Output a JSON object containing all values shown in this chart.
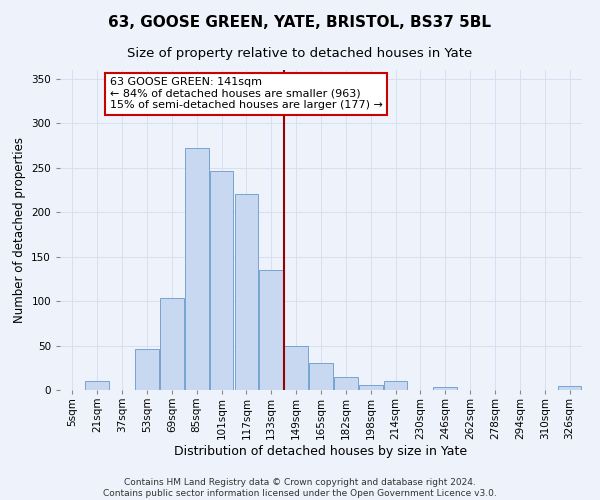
{
  "title": "63, GOOSE GREEN, YATE, BRISTOL, BS37 5BL",
  "subtitle": "Size of property relative to detached houses in Yate",
  "xlabel": "Distribution of detached houses by size in Yate",
  "ylabel": "Number of detached properties",
  "footer_line1": "Contains HM Land Registry data © Crown copyright and database right 2024.",
  "footer_line2": "Contains public sector information licensed under the Open Government Licence v3.0.",
  "bar_labels": [
    "5sqm",
    "21sqm",
    "37sqm",
    "53sqm",
    "69sqm",
    "85sqm",
    "101sqm",
    "117sqm",
    "133sqm",
    "149sqm",
    "165sqm",
    "182sqm",
    "198sqm",
    "214sqm",
    "230sqm",
    "246sqm",
    "262sqm",
    "278sqm",
    "294sqm",
    "310sqm",
    "326sqm"
  ],
  "bar_heights": [
    0,
    10,
    0,
    46,
    104,
    272,
    246,
    220,
    135,
    50,
    30,
    15,
    6,
    10,
    0,
    3,
    0,
    0,
    0,
    0,
    4
  ],
  "bar_color": "#c8d8f0",
  "bar_edgecolor": "#6699cc",
  "background_color": "#eef2fb",
  "grid_color": "#d8dff0",
  "vline_x": 8.5,
  "vline_color": "#990000",
  "annotation_line1": "63 GOOSE GREEN: 141sqm",
  "annotation_line2": "← 84% of detached houses are smaller (963)",
  "annotation_line3": "15% of semi-detached houses are larger (177) →",
  "annotation_box_color": "#cc0000",
  "ylim": [
    0,
    360
  ],
  "yticks": [
    0,
    50,
    100,
    150,
    200,
    250,
    300,
    350
  ],
  "title_fontsize": 11,
  "subtitle_fontsize": 9.5,
  "xlabel_fontsize": 9,
  "ylabel_fontsize": 8.5,
  "tick_fontsize": 7.5,
  "annotation_fontsize": 8,
  "footer_fontsize": 6.5
}
